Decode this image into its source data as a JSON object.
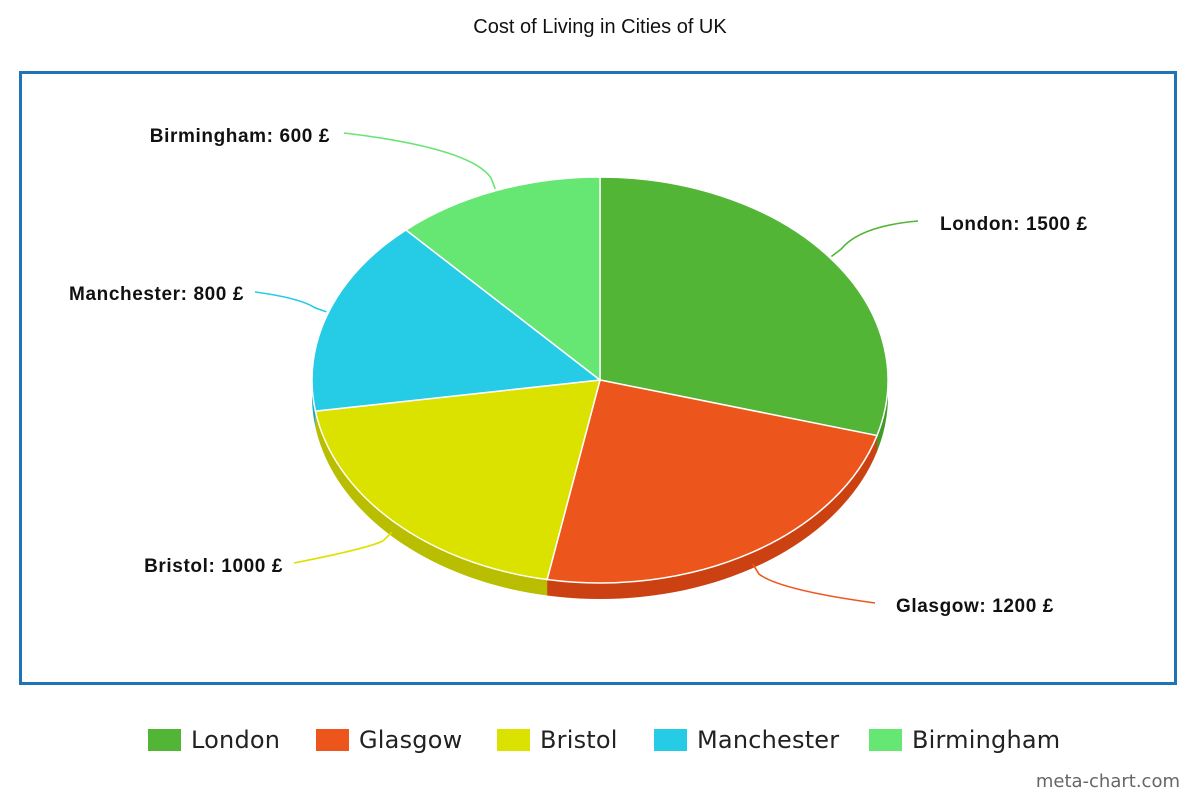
{
  "chart_data": {
    "type": "pie",
    "title": "Cost of Living in Cities of UK",
    "categories": [
      "London",
      "Glasgow",
      "Bristol",
      "Manchester",
      "Birmingham"
    ],
    "values": [
      1500,
      1200,
      1000,
      800,
      600
    ],
    "unit": "£",
    "data_labels": [
      "London: 1500 £",
      "Glasgow: 1200 £",
      "Bristol: 1000 £",
      "Manchester: 800 £",
      "Birmingham: 600 £"
    ],
    "colors": [
      "#52b535",
      "#ec561d",
      "#dbe200",
      "#26cce6",
      "#66e672"
    ],
    "side_colors": [
      "#3f9a28",
      "#cc4112",
      "#b9bf00",
      "#1ea9c0",
      "#4fc25a"
    ],
    "legend_position": "bottom",
    "three_d": true
  },
  "legend": {
    "items": [
      "London",
      "Glasgow",
      "Bristol",
      "Manchester",
      "Birmingham"
    ]
  },
  "footer": {
    "watermark": "meta-chart.com"
  }
}
